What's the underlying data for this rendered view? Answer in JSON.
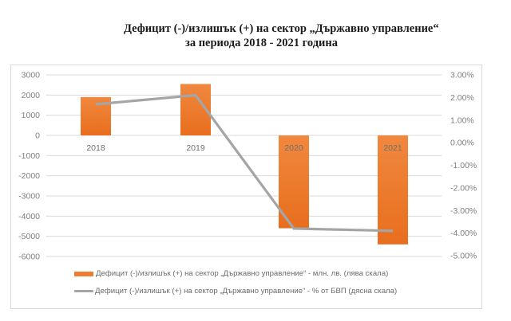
{
  "title": {
    "line1": "Дефицит (-)/излишък (+) на сектор „Държавно управление“",
    "line2": "за периода 2018 - 2021 година"
  },
  "colors": {
    "bar": "#ED7D31",
    "line": "#A5A5A5",
    "grid": "#d9d9d9",
    "axis_text": "#7f7f7f"
  },
  "legend": [
    {
      "label": "Дефицит (-)/излишък (+) на сектор „Държавно управление“ - млн. лв. (лява скала)",
      "type": "bar"
    },
    {
      "label": "Дефицит (-)/излишък (+) на сектор „Държавно управление“ - % от БВП (дясна скала)",
      "type": "line"
    }
  ],
  "chart_data": {
    "type": "bar",
    "title": "Дефицит (-)/излишък (+) на сектор „Държавно управление“ за периода 2018 - 2021 година",
    "categories": [
      "2018",
      "2019",
      "2020",
      "2021"
    ],
    "series": [
      {
        "name": "Дефицит (-)/излишък (+) на сектор „Държавно управление“ - млн. лв. (лява скала)",
        "type": "bar",
        "axis": "left",
        "values": [
          1900,
          2550,
          -4600,
          -5400
        ]
      },
      {
        "name": "Дефицит (-)/излишък (+) на сектор „Държавно управление“ - % от БВП (дясна скала)",
        "type": "line",
        "axis": "right",
        "values": [
          1.7,
          2.1,
          -3.8,
          -3.9
        ]
      }
    ],
    "left_axis": {
      "ticks": [
        "3000",
        "2000",
        "1000",
        "0",
        "-1000",
        "-2000",
        "-3000",
        "-4000",
        "-5000",
        "-6000"
      ],
      "ylim": [
        -6000,
        3000
      ]
    },
    "right_axis": {
      "ticks": [
        "3.00%",
        "2.00%",
        "1.00%",
        "0.00%",
        "-1.00%",
        "-2.00%",
        "-3.00%",
        "-4.00%",
        "-5.00%"
      ],
      "ylim": [
        -5,
        3
      ]
    },
    "xlabel": "",
    "ylabel": "",
    "grid": true,
    "legend_position": "bottom"
  }
}
